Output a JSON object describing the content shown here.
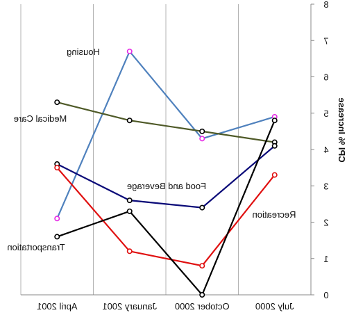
{
  "chart_data": {
    "type": "line",
    "title": "",
    "xlabel": "",
    "ylabel": "CPI % Increase",
    "ylim": [
      0,
      8
    ],
    "yticks": [
      "0",
      "1",
      "2",
      "3",
      "4",
      "5",
      "6",
      "7",
      "8"
    ],
    "categories": [
      "July 2000",
      "October 2000",
      "January 2001",
      "April 2001"
    ],
    "grid": "vertical",
    "series": [
      {
        "name": "Housing",
        "color": "#4F81BD",
        "marker": "#E62BE6",
        "values": [
          4.9,
          4.3,
          6.7,
          2.1
        ]
      },
      {
        "name": "Medical Care",
        "color": "#4F5A28",
        "marker": "#000000",
        "values": [
          4.2,
          4.5,
          4.8,
          5.3
        ]
      },
      {
        "name": "Food and Beverage",
        "color": "#0A0A78",
        "marker": "#000000",
        "values": [
          4.1,
          2.4,
          2.6,
          3.6
        ]
      },
      {
        "name": "Recreation",
        "color": "#E01010",
        "marker": "#E01010",
        "values": [
          3.3,
          0.8,
          1.2,
          3.5
        ]
      },
      {
        "name": "Transportation",
        "color": "#000000",
        "marker": "#000000",
        "values": [
          4.8,
          0.0,
          2.3,
          1.6
        ]
      }
    ]
  }
}
